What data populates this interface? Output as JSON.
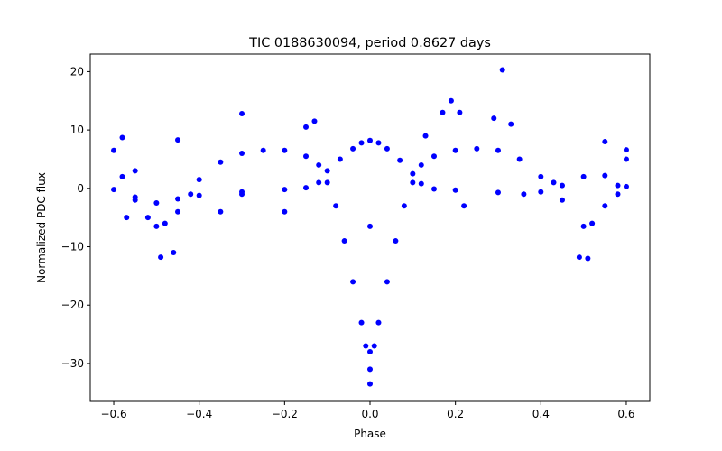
{
  "chart_data": {
    "type": "scatter",
    "title": "TIC 0188630094, period 0.8627 days",
    "xlabel": "Phase",
    "ylabel": "Normalized PDC flux",
    "xlim": [
      -0.655,
      0.655
    ],
    "ylim": [
      -36.5,
      23.0
    ],
    "xticks": [
      -0.6,
      -0.4,
      -0.2,
      0.0,
      0.2,
      0.4,
      0.6
    ],
    "xtick_labels": [
      "−0.6",
      "−0.4",
      "−0.2",
      "0.0",
      "0.2",
      "0.4",
      "0.6"
    ],
    "yticks": [
      -30,
      -20,
      -10,
      0,
      10,
      20
    ],
    "ytick_labels": [
      "−30",
      "−20",
      "−10",
      "0",
      "10",
      "20"
    ],
    "grid": false,
    "legend": "none",
    "marker_color": "#0000ff",
    "series": [
      {
        "values": [
          {
            "x": -0.6,
            "y": -0.2
          },
          {
            "x": -0.55,
            "y": -1.5
          },
          {
            "x": -0.5,
            "y": -2.5
          },
          {
            "x": -0.45,
            "y": -1.8
          },
          {
            "x": -0.4,
            "y": -1.2
          },
          {
            "x": -0.3,
            "y": -0.6
          },
          {
            "x": -0.2,
            "y": -0.2
          },
          {
            "x": -0.15,
            "y": 0.1
          },
          {
            "x": -0.12,
            "y": 1.0
          },
          {
            "x": -0.1,
            "y": 3.0
          },
          {
            "x": -0.07,
            "y": 5.0
          },
          {
            "x": -0.04,
            "y": 6.8
          },
          {
            "x": -0.02,
            "y": 7.8
          },
          {
            "x": 0.0,
            "y": 8.2
          },
          {
            "x": 0.02,
            "y": 7.8
          },
          {
            "x": 0.04,
            "y": 6.8
          },
          {
            "x": 0.07,
            "y": 4.8
          },
          {
            "x": 0.1,
            "y": 2.5
          },
          {
            "x": 0.12,
            "y": 0.8
          },
          {
            "x": 0.15,
            "y": -0.1
          },
          {
            "x": 0.2,
            "y": -0.3
          },
          {
            "x": 0.3,
            "y": -0.7
          },
          {
            "x": 0.4,
            "y": -0.6
          },
          {
            "x": 0.45,
            "y": 0.5
          },
          {
            "x": 0.5,
            "y": 2.0
          },
          {
            "x": 0.55,
            "y": 2.2
          },
          {
            "x": 0.6,
            "y": 0.3
          }
        ]
      },
      {
        "values": [
          {
            "x": -0.6,
            "y": 6.5
          },
          {
            "x": -0.58,
            "y": 2.0
          },
          {
            "x": -0.55,
            "y": -2.0
          },
          {
            "x": -0.52,
            "y": -5.0
          },
          {
            "x": -0.5,
            "y": -6.5
          },
          {
            "x": -0.48,
            "y": -6.0
          },
          {
            "x": -0.45,
            "y": -4.0
          },
          {
            "x": -0.42,
            "y": -1.0
          },
          {
            "x": -0.4,
            "y": 1.5
          },
          {
            "x": -0.35,
            "y": 4.5
          },
          {
            "x": -0.3,
            "y": 6.0
          },
          {
            "x": -0.25,
            "y": 6.5
          },
          {
            "x": -0.2,
            "y": 6.5
          },
          {
            "x": -0.15,
            "y": 5.5
          },
          {
            "x": -0.12,
            "y": 4.0
          },
          {
            "x": -0.1,
            "y": 1.0
          },
          {
            "x": -0.08,
            "y": -3.0
          },
          {
            "x": -0.06,
            "y": -9.0
          },
          {
            "x": -0.04,
            "y": -16.0
          },
          {
            "x": -0.02,
            "y": -23.0
          },
          {
            "x": -0.01,
            "y": -27.0
          },
          {
            "x": 0.0,
            "y": -28.0
          },
          {
            "x": 0.01,
            "y": -27.0
          },
          {
            "x": 0.02,
            "y": -23.0
          },
          {
            "x": 0.04,
            "y": -16.0
          },
          {
            "x": 0.06,
            "y": -9.0
          },
          {
            "x": 0.08,
            "y": -3.0
          },
          {
            "x": 0.1,
            "y": 1.0
          },
          {
            "x": 0.12,
            "y": 4.0
          },
          {
            "x": 0.15,
            "y": 5.5
          },
          {
            "x": 0.2,
            "y": 6.5
          },
          {
            "x": 0.25,
            "y": 6.8
          },
          {
            "x": 0.3,
            "y": 6.5
          },
          {
            "x": 0.35,
            "y": 5.0
          },
          {
            "x": 0.4,
            "y": 2.0
          },
          {
            "x": 0.45,
            "y": -2.0
          },
          {
            "x": 0.5,
            "y": -6.5
          },
          {
            "x": 0.52,
            "y": -6.0
          },
          {
            "x": 0.55,
            "y": -3.0
          },
          {
            "x": 0.58,
            "y": 0.5
          },
          {
            "x": 0.6,
            "y": 5.0
          }
        ]
      },
      {
        "values": [
          {
            "x": 0.0,
            "y": -33.5
          },
          {
            "x": 0.0,
            "y": -31.0
          },
          {
            "x": 0.0,
            "y": -6.5
          },
          {
            "x": 0.19,
            "y": 15.0
          },
          {
            "x": 0.17,
            "y": 13.0
          },
          {
            "x": 0.21,
            "y": 13.0
          },
          {
            "x": 0.31,
            "y": 20.3
          },
          {
            "x": 0.29,
            "y": 12.0
          },
          {
            "x": 0.33,
            "y": 11.0
          },
          {
            "x": -0.3,
            "y": 12.8
          },
          {
            "x": -0.13,
            "y": 11.5
          },
          {
            "x": -0.15,
            "y": 10.5
          },
          {
            "x": -0.45,
            "y": 8.3
          },
          {
            "x": -0.58,
            "y": 8.7
          },
          {
            "x": 0.55,
            "y": 8.0
          },
          {
            "x": -0.49,
            "y": -11.8
          },
          {
            "x": -0.46,
            "y": -11.0
          },
          {
            "x": 0.49,
            "y": -11.8
          },
          {
            "x": 0.51,
            "y": -12.0
          },
          {
            "x": -0.35,
            "y": -4.0
          },
          {
            "x": -0.2,
            "y": -4.0
          },
          {
            "x": 0.22,
            "y": -3.0
          },
          {
            "x": 0.36,
            "y": -1.0
          },
          {
            "x": -0.57,
            "y": -5.0
          },
          {
            "x": 0.58,
            "y": -1.0
          },
          {
            "x": -0.3,
            "y": -1.0
          },
          {
            "x": 0.13,
            "y": 9.0
          },
          {
            "x": 0.43,
            "y": 1.0
          },
          {
            "x": 0.6,
            "y": 6.6
          },
          {
            "x": -0.55,
            "y": 3.0
          }
        ]
      }
    ]
  }
}
